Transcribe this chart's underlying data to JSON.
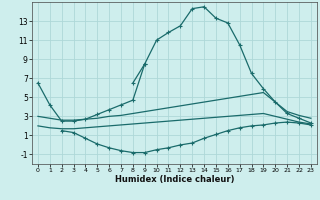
{
  "xlabel": "Humidex (Indice chaleur)",
  "bg_color": "#ceeeed",
  "grid_color": "#aed8d8",
  "line_color": "#1a6b6b",
  "x_ticks": [
    0,
    1,
    2,
    3,
    4,
    5,
    6,
    7,
    8,
    9,
    10,
    11,
    12,
    13,
    14,
    15,
    16,
    17,
    18,
    19,
    20,
    21,
    22,
    23
  ],
  "y_ticks": [
    -1,
    1,
    3,
    5,
    7,
    9,
    11,
    13
  ],
  "ylim": [
    -2,
    15
  ],
  "xlim": [
    -0.5,
    23.5
  ],
  "series": [
    {
      "x": [
        0,
        1,
        2,
        3,
        4,
        5,
        6,
        7,
        8,
        9,
        10,
        11,
        12,
        13,
        14,
        15,
        16,
        17,
        18,
        19,
        20,
        21,
        22,
        23
      ],
      "y": [
        6.5,
        4.2,
        2.5,
        2.5,
        2.7,
        3.2,
        3.7,
        4.2,
        4.7,
        8.5,
        11.0,
        11.8,
        12.5,
        14.3,
        14.5,
        13.3,
        12.8,
        10.5,
        7.5,
        5.9,
        4.5,
        3.3,
        2.8,
        2.3
      ],
      "marker": true
    },
    {
      "x": [
        0,
        1,
        2,
        3,
        4,
        5,
        6,
        7,
        8,
        9,
        10,
        11,
        12,
        13,
        14,
        15,
        16,
        17,
        18,
        19,
        20,
        21,
        22,
        23
      ],
      "y": [
        3.0,
        2.8,
        2.6,
        2.6,
        2.7,
        2.8,
        3.0,
        3.1,
        3.3,
        3.5,
        3.7,
        3.9,
        4.1,
        4.3,
        4.5,
        4.7,
        4.9,
        5.1,
        5.3,
        5.5,
        4.5,
        3.5,
        3.1,
        2.8
      ],
      "marker": false
    },
    {
      "x": [
        0,
        1,
        2,
        3,
        4,
        5,
        6,
        7,
        8,
        9,
        10,
        11,
        12,
        13,
        14,
        15,
        16,
        17,
        18,
        19,
        20,
        21,
        22,
        23
      ],
      "y": [
        2.0,
        1.8,
        1.7,
        1.7,
        1.8,
        1.9,
        2.0,
        2.1,
        2.2,
        2.3,
        2.4,
        2.5,
        2.6,
        2.7,
        2.8,
        2.9,
        3.0,
        3.1,
        3.2,
        3.3,
        3.0,
        2.7,
        2.4,
        2.2
      ],
      "marker": false
    },
    {
      "x": [
        2,
        3,
        4,
        5,
        6,
        7,
        8,
        9,
        10,
        11,
        12,
        13,
        14,
        15,
        16,
        17,
        18,
        19,
        20,
        21,
        22,
        23
      ],
      "y": [
        1.5,
        1.3,
        0.7,
        0.1,
        -0.3,
        -0.6,
        -0.8,
        -0.8,
        -0.5,
        -0.3,
        0.0,
        0.2,
        0.7,
        1.1,
        1.5,
        1.8,
        2.0,
        2.1,
        2.3,
        2.4,
        2.3,
        2.1
      ],
      "marker": true
    },
    {
      "x": [
        8,
        9
      ],
      "y": [
        6.5,
        8.5
      ],
      "marker": true
    }
  ]
}
